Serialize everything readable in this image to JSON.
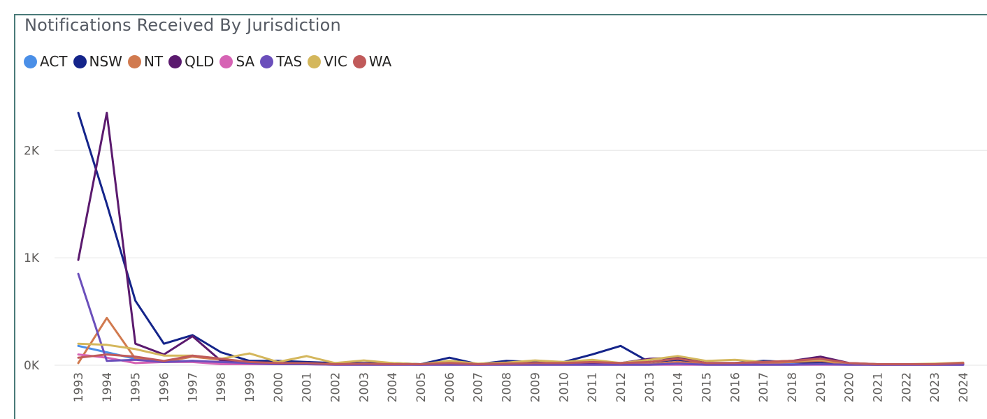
{
  "chart_data": {
    "type": "line",
    "title": "Notifications Received By Jurisdiction",
    "xlabel": "",
    "ylabel": "",
    "ylim": [
      0,
      2600
    ],
    "yticks": [
      {
        "value": 0,
        "label": "0K"
      },
      {
        "value": 1000,
        "label": "1K"
      },
      {
        "value": 2000,
        "label": "2K"
      }
    ],
    "legend_position": "top-left",
    "grid": true,
    "x": [
      "1993",
      "1994",
      "1995",
      "1996",
      "1997",
      "1998",
      "1999",
      "2000",
      "2001",
      "2002",
      "2003",
      "2004",
      "2005",
      "2006",
      "2007",
      "2008",
      "2009",
      "2010",
      "2011",
      "2012",
      "2013",
      "2014",
      "2015",
      "2016",
      "2017",
      "2018",
      "2019",
      "2020",
      "2021",
      "2022",
      "2023",
      "2024"
    ],
    "series": [
      {
        "name": "ACT",
        "color": "#4a8fe7",
        "values": [
          180,
          120,
          60,
          30,
          40,
          20,
          15,
          10,
          10,
          10,
          10,
          10,
          5,
          10,
          5,
          10,
          10,
          10,
          10,
          10,
          10,
          10,
          10,
          10,
          10,
          10,
          10,
          10,
          5,
          5,
          5,
          5
        ]
      },
      {
        "name": "NSW",
        "color": "#14248a",
        "values": [
          2350,
          1500,
          600,
          200,
          280,
          120,
          40,
          40,
          30,
          20,
          20,
          20,
          10,
          70,
          10,
          40,
          30,
          30,
          100,
          180,
          30,
          50,
          20,
          20,
          40,
          30,
          20,
          10,
          5,
          10,
          10,
          15
        ]
      },
      {
        "name": "NT",
        "color": "#d17a4f",
        "values": [
          20,
          440,
          60,
          30,
          80,
          50,
          20,
          10,
          10,
          10,
          10,
          10,
          5,
          20,
          5,
          10,
          10,
          10,
          10,
          10,
          10,
          30,
          10,
          10,
          20,
          30,
          40,
          10,
          5,
          5,
          5,
          10
        ]
      },
      {
        "name": "QLD",
        "color": "#5b1a6e",
        "values": [
          980,
          2350,
          200,
          100,
          270,
          40,
          30,
          20,
          15,
          10,
          15,
          10,
          10,
          20,
          10,
          20,
          20,
          20,
          20,
          20,
          60,
          70,
          20,
          20,
          30,
          40,
          80,
          20,
          10,
          10,
          10,
          15
        ]
      },
      {
        "name": "SA",
        "color": "#d663b4",
        "values": [
          100,
          70,
          20,
          30,
          30,
          10,
          10,
          10,
          10,
          5,
          5,
          5,
          5,
          5,
          5,
          5,
          5,
          5,
          5,
          5,
          5,
          5,
          5,
          5,
          5,
          5,
          5,
          5,
          5,
          5,
          5,
          5
        ]
      },
      {
        "name": "TAS",
        "color": "#6b4fbb",
        "values": [
          850,
          40,
          50,
          30,
          40,
          30,
          20,
          10,
          10,
          5,
          5,
          5,
          5,
          5,
          5,
          5,
          5,
          5,
          5,
          5,
          5,
          15,
          5,
          5,
          5,
          5,
          10,
          5,
          5,
          5,
          5,
          5
        ]
      },
      {
        "name": "VIC",
        "color": "#d4b75c",
        "values": [
          200,
          190,
          150,
          90,
          90,
          60,
          110,
          30,
          85,
          20,
          45,
          20,
          10,
          40,
          15,
          25,
          45,
          30,
          50,
          20,
          50,
          85,
          40,
          50,
          30,
          40,
          50,
          20,
          10,
          10,
          15,
          25
        ]
      },
      {
        "name": "WA",
        "color": "#c05a5a",
        "values": [
          70,
          100,
          80,
          40,
          90,
          60,
          30,
          20,
          20,
          10,
          15,
          10,
          10,
          20,
          10,
          15,
          20,
          20,
          30,
          20,
          30,
          60,
          20,
          20,
          30,
          40,
          60,
          20,
          10,
          10,
          10,
          20
        ]
      }
    ]
  }
}
